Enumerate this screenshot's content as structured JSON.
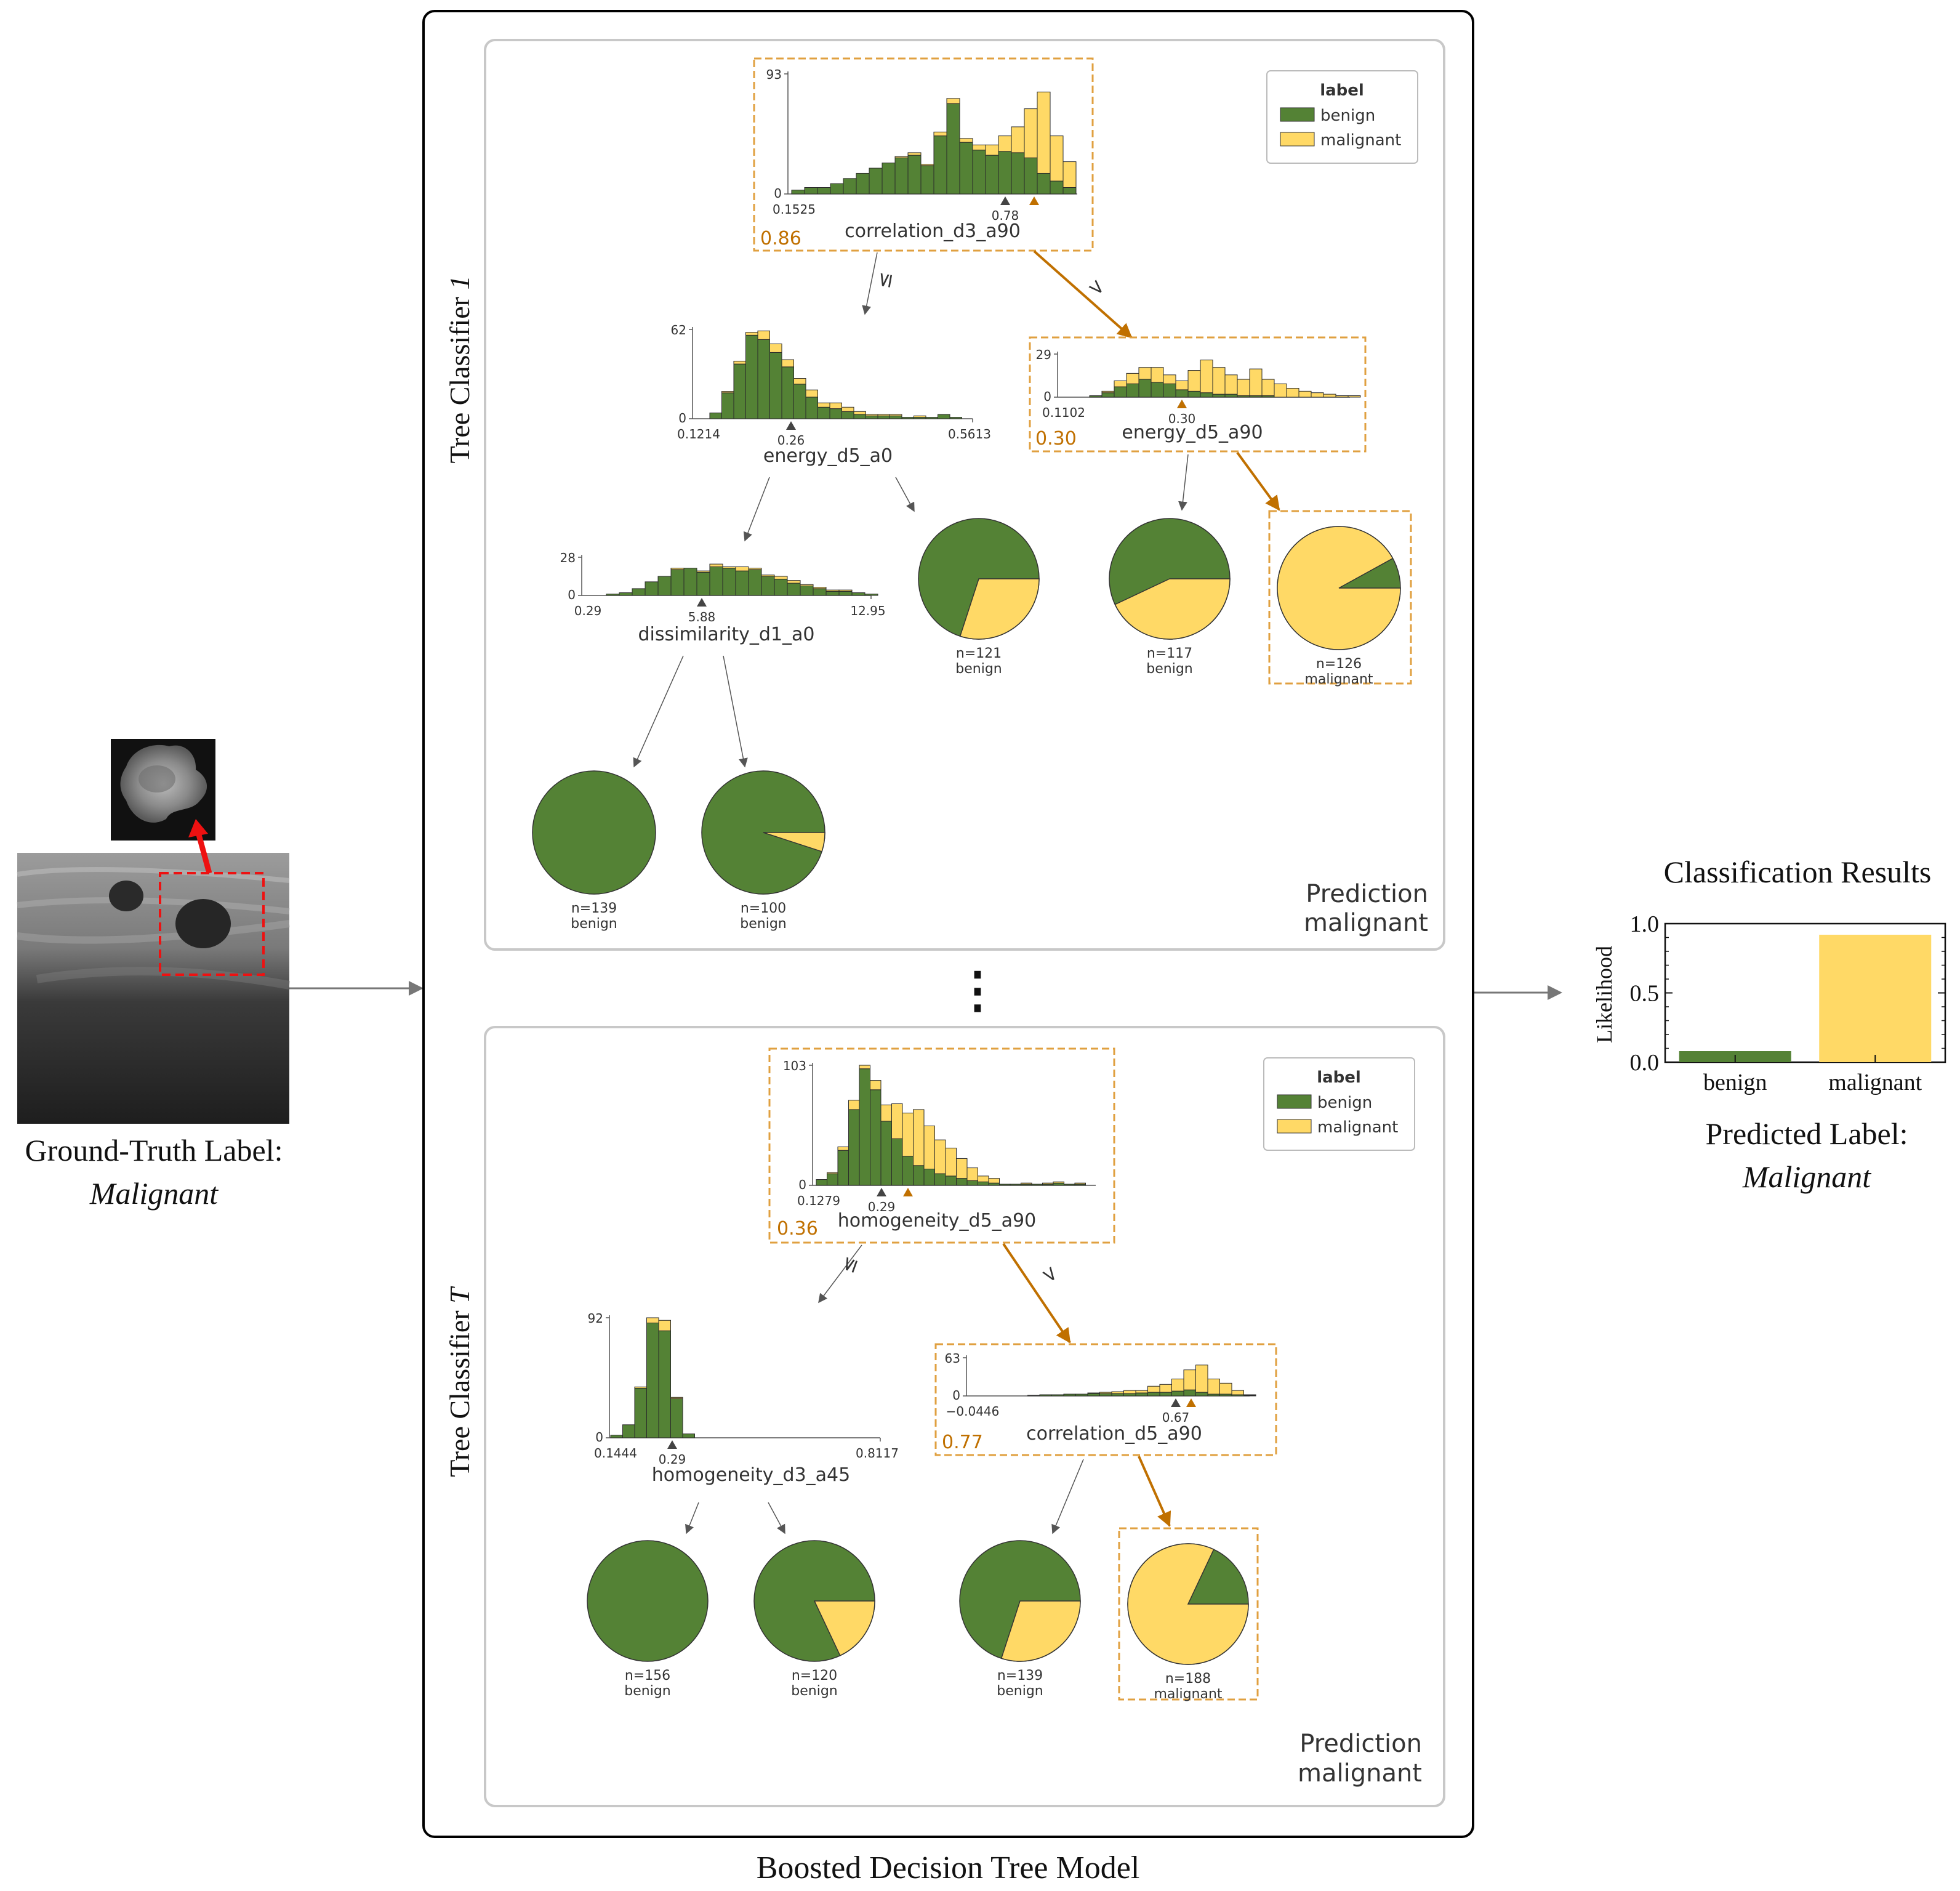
{
  "colors": {
    "benign": "#548235",
    "malignant": "#FFD966",
    "highlight": "#E0A040",
    "highlight_text": "#C07000",
    "arrow_red": "#EE1111",
    "frame": "#000000",
    "panel_border": "#C8C8C8"
  },
  "input": {
    "gt_line1": "Ground-Truth Label:",
    "gt_line2": "Malignant"
  },
  "model": {
    "title": "Boosted Decision Tree Model",
    "ellipsis": "⋮"
  },
  "trees": [
    {
      "title_prefix": "Tree Classifier ",
      "title_index": "1",
      "prediction_label": "Prediction",
      "prediction_value": "malignant",
      "legend": {
        "title": "label",
        "items": [
          "benign",
          "malignant"
        ]
      },
      "root": {
        "feature": "correlation_d3_a90",
        "xmin": "0.1525",
        "split": "0.78",
        "ymax": "93",
        "ymin": "0",
        "input_value": "0.86",
        "benign": [
          3,
          5,
          5,
          8,
          12,
          16,
          20,
          24,
          28,
          30,
          22,
          45,
          70,
          40,
          34,
          30,
          33,
          32,
          28,
          16,
          10,
          5
        ],
        "malignant": [
          0,
          0,
          0,
          0,
          0,
          0,
          0,
          0,
          1,
          2,
          1,
          3,
          4,
          3,
          4,
          8,
          12,
          20,
          38,
          63,
          35,
          20
        ]
      },
      "le_symbol": "≤",
      "gt_symbol": ">",
      "left": {
        "feature": "energy_d5_a0",
        "xmin": "0.1214",
        "xmax": "0.5613",
        "split": "0.26",
        "ymax": "62",
        "ymin": "0",
        "benign": [
          4,
          18,
          38,
          58,
          55,
          46,
          36,
          24,
          15,
          8,
          7,
          5,
          3,
          2,
          2,
          2,
          1,
          1,
          1,
          3,
          1
        ],
        "malignant": [
          0,
          1,
          2,
          2,
          6,
          6,
          5,
          4,
          5,
          3,
          4,
          3,
          2,
          1,
          1,
          1,
          0,
          1,
          0,
          0,
          0
        ]
      },
      "right": {
        "feature": "energy_d5_a90",
        "xmin": "0.1102",
        "split": "0.30",
        "ymax": "29",
        "ymin": "0",
        "input_value": "0.30",
        "benign": [
          1,
          3,
          7,
          9,
          12,
          10,
          9,
          5,
          4,
          3,
          2,
          2,
          1,
          1,
          1,
          0,
          0,
          0,
          0,
          0,
          0,
          0
        ],
        "malignant": [
          0,
          1,
          4,
          7,
          8,
          10,
          6,
          6,
          14,
          22,
          18,
          13,
          11,
          18,
          11,
          9,
          6,
          4,
          3,
          2,
          1,
          1
        ]
      },
      "left_left": {
        "feature": "dissimilarity_d1_a0",
        "xmin": "0.29",
        "xmax": "12.95",
        "split": "5.88",
        "ymax": "28",
        "ymin": "0",
        "benign": [
          1,
          2,
          5,
          10,
          14,
          19,
          20,
          17,
          21,
          20,
          18,
          19,
          14,
          12,
          9,
          7,
          5,
          3,
          3,
          2,
          1
        ],
        "malignant": [
          0,
          0,
          0,
          0,
          0,
          1,
          0,
          1,
          2,
          1,
          3,
          1,
          1,
          2,
          2,
          1,
          1,
          1,
          1,
          0,
          0
        ]
      },
      "leaves": [
        {
          "n": "n=121",
          "cls": "benign",
          "frac": 0.3
        },
        {
          "n": "n=117",
          "cls": "benign",
          "frac": 0.43
        },
        {
          "n": "n=126",
          "cls": "malignant",
          "frac": 0.92
        },
        {
          "n": "n=139",
          "cls": "benign",
          "frac": 0.0
        },
        {
          "n": "n=100",
          "cls": "benign",
          "frac": 0.05
        }
      ]
    },
    {
      "title_prefix": "Tree Classifier ",
      "title_index": "T",
      "prediction_label": "Prediction",
      "prediction_value": "malignant",
      "legend": {
        "title": "label",
        "items": [
          "benign",
          "malignant"
        ]
      },
      "root": {
        "feature": "homogeneity_d5_a90",
        "xmin": "0.1279",
        "split": "0.29",
        "ymax": "103",
        "ymin": "0",
        "input_value": "0.36",
        "benign": [
          5,
          10,
          30,
          65,
          100,
          82,
          55,
          40,
          25,
          17,
          14,
          10,
          8,
          6,
          4,
          3,
          2,
          1,
          1,
          1,
          1,
          1,
          2,
          1,
          1
        ],
        "malignant": [
          0,
          1,
          3,
          8,
          3,
          8,
          14,
          30,
          37,
          48,
          37,
          29,
          24,
          17,
          11,
          5,
          4,
          0,
          0,
          1,
          0,
          1,
          1,
          0,
          1
        ]
      },
      "le_symbol": "≤",
      "gt_symbol": ">",
      "left": {
        "feature": "homogeneity_d3_a45",
        "xmin": "0.1444",
        "xmax": "0.8117",
        "split": "0.29",
        "ymax": "92",
        "ymin": "0",
        "benign": [
          2,
          10,
          38,
          88,
          82,
          30,
          3,
          0,
          0,
          0,
          0,
          0,
          0,
          0,
          0,
          0,
          0,
          0,
          0,
          0,
          0,
          0
        ],
        "malignant": [
          0,
          0,
          1,
          4,
          8,
          1,
          0,
          0,
          0,
          0,
          0,
          0,
          0,
          0,
          0,
          0,
          0,
          0,
          0,
          0,
          0,
          0
        ]
      },
      "right": {
        "feature": "correlation_d5_a90",
        "xmin": "−0.0446",
        "split": "0.67",
        "ymax": "63",
        "ymin": "0",
        "input_value": "0.77",
        "benign": [
          0,
          0,
          0,
          0,
          0,
          1,
          2,
          2,
          3,
          3,
          4,
          4,
          4,
          4,
          5,
          6,
          6,
          8,
          10,
          6,
          3,
          3,
          2,
          1
        ],
        "malignant": [
          0,
          0,
          0,
          0,
          0,
          0,
          0,
          0,
          0,
          0,
          1,
          2,
          3,
          5,
          4,
          10,
          13,
          20,
          33,
          45,
          25,
          18,
          7,
          1
        ]
      },
      "leaves": [
        {
          "n": "n=156",
          "cls": "benign",
          "frac": 0.0
        },
        {
          "n": "n=120",
          "cls": "benign",
          "frac": 0.18
        },
        {
          "n": "n=139",
          "cls": "benign",
          "frac": 0.3
        },
        {
          "n": "n=188",
          "cls": "malignant",
          "frac": 0.82
        }
      ]
    }
  ],
  "results": {
    "title": "Classification Results",
    "ylabel": "Likelihood",
    "pred_line1": "Predicted Label:",
    "pred_line2": "Malignant"
  },
  "chart_data": {
    "type": "bar",
    "title": "Classification Results",
    "categories": [
      "benign",
      "malignant"
    ],
    "values": [
      0.08,
      0.92
    ],
    "ylabel": "Likelihood",
    "ylim": [
      0,
      1.0
    ],
    "yticks": [
      "0.0",
      "0.5",
      "1.0"
    ]
  }
}
